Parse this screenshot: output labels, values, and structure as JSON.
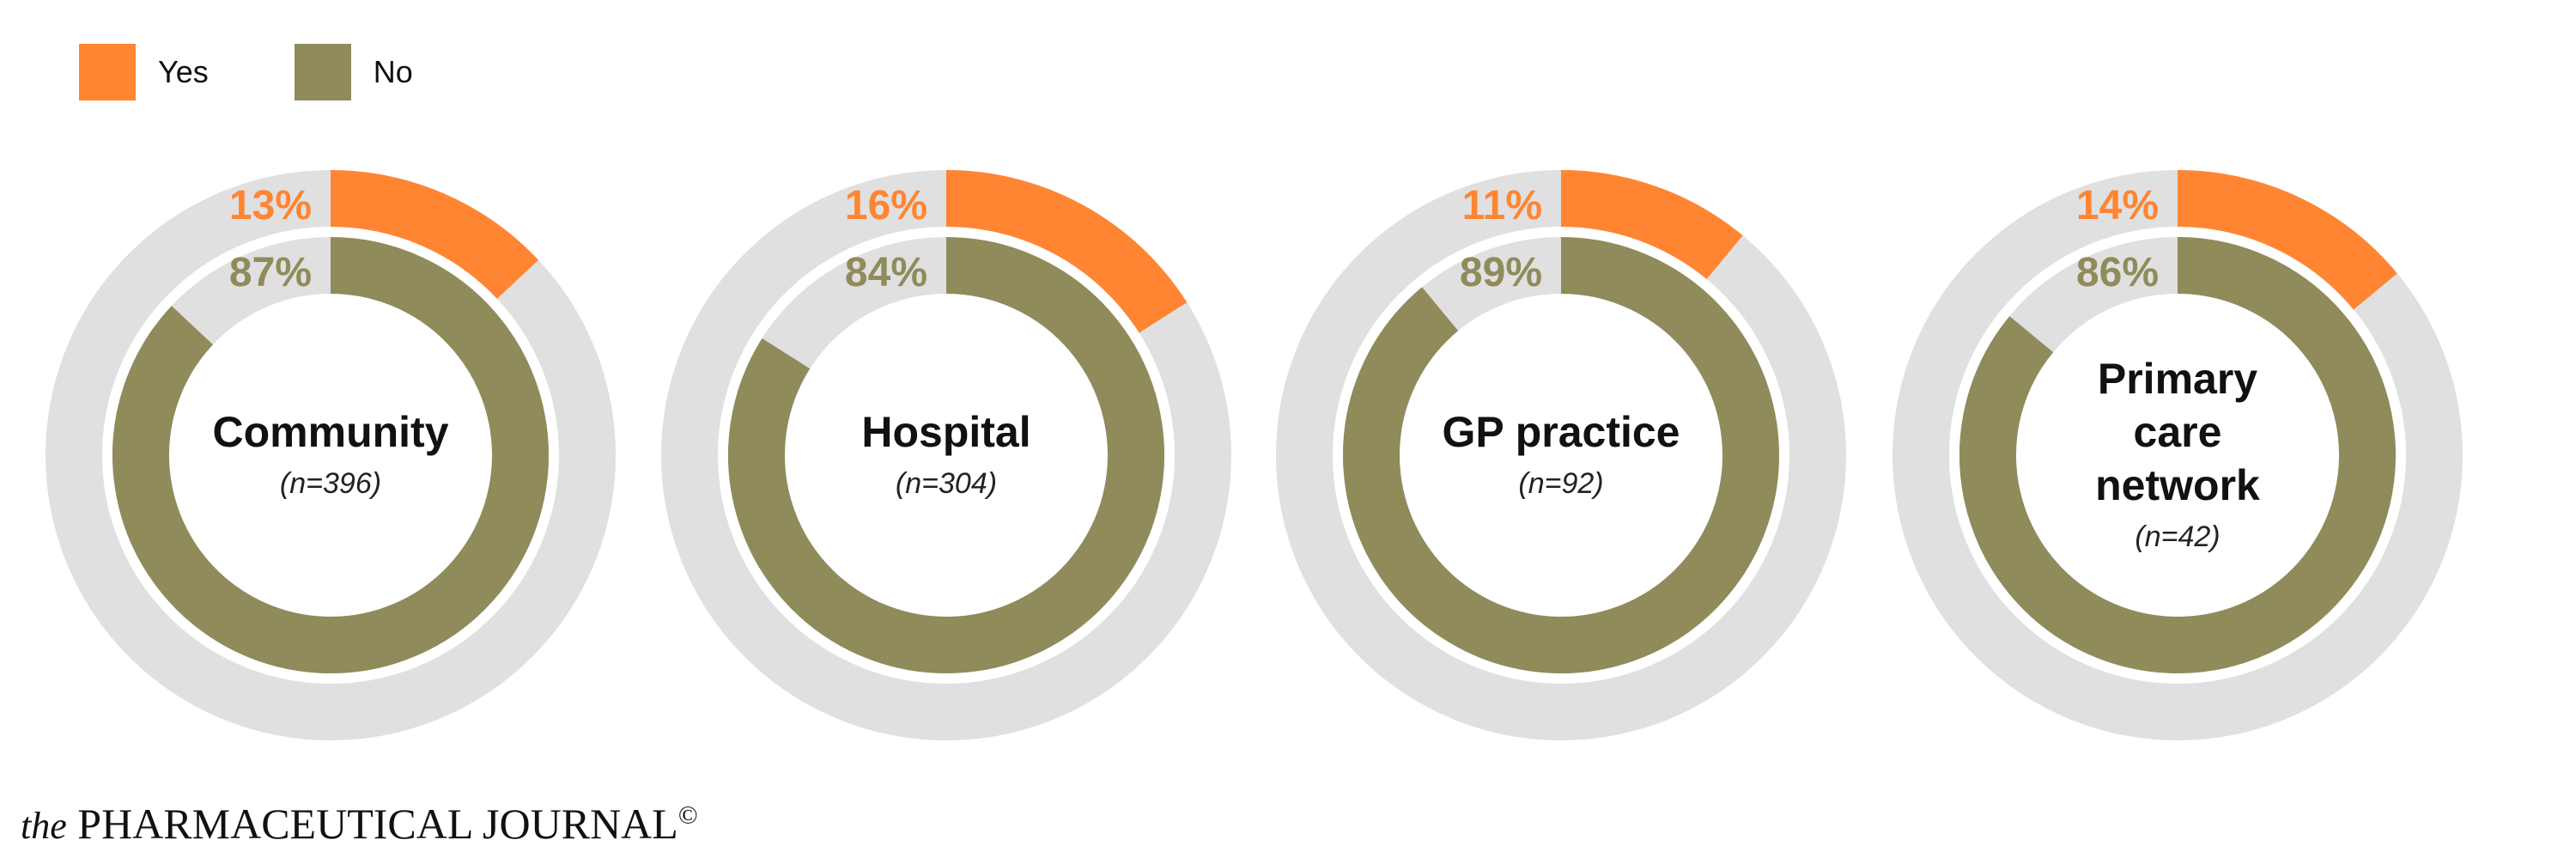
{
  "legend": [
    {
      "label": "Yes",
      "color": "#FF8533"
    },
    {
      "label": "No",
      "color": "#8F8B5B"
    }
  ],
  "colors": {
    "yes": "#FF8533",
    "no": "#8F8B5B",
    "track": "#E0E0E0"
  },
  "chart_data": {
    "type": "pie",
    "title": "",
    "series_names": [
      "Yes",
      "No"
    ],
    "groups": [
      {
        "title_lines": [
          "Community"
        ],
        "n": "(n=396)",
        "yes": 13,
        "no": 87,
        "yes_label": "13%",
        "no_label": "87%"
      },
      {
        "title_lines": [
          "Hospital"
        ],
        "n": "(n=304)",
        "yes": 16,
        "no": 84,
        "yes_label": "16%",
        "no_label": "84%"
      },
      {
        "title_lines": [
          "GP practice"
        ],
        "n": "(n=92)",
        "yes": 11,
        "no": 89,
        "yes_label": "11%",
        "no_label": "89%"
      },
      {
        "title_lines": [
          "Primary",
          "care",
          "network"
        ],
        "n": "(n=42)",
        "yes": 14,
        "no": 86,
        "yes_label": "14%",
        "no_label": "86%"
      }
    ]
  },
  "footer": {
    "prefix": "the",
    "name": "PHARMACEUTICAL JOURNAL",
    "mark": "©"
  }
}
